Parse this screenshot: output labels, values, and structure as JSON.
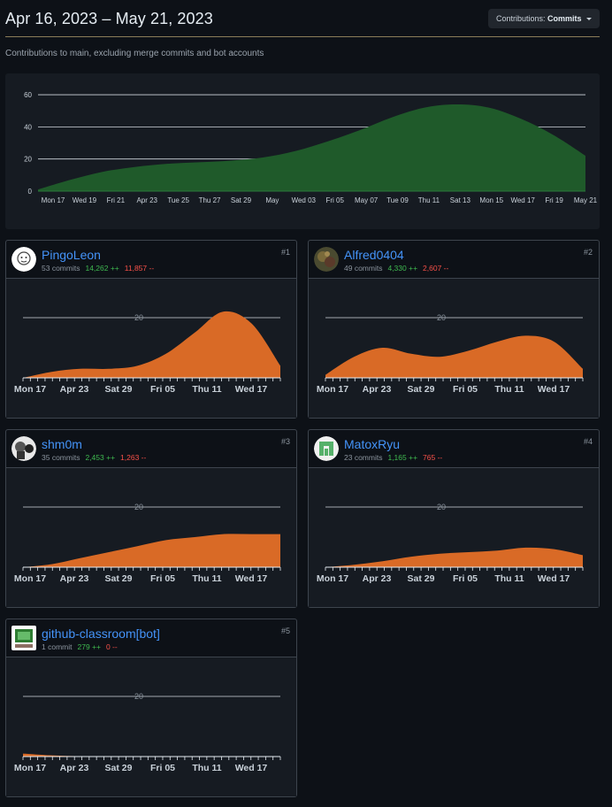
{
  "header": {
    "title": "Apr 16, 2023 – May 21, 2023",
    "dropdown_prefix": "Contributions:",
    "dropdown_value": "Commits"
  },
  "subtitle": "Contributions to main, excluding merge commits and bot accounts",
  "colors": {
    "main_fill": "#1f5a2a",
    "contributor_fill": "#d96a26",
    "link": "#4493f8",
    "additions": "#3fb950",
    "deletions": "#f85149"
  },
  "chart_data": [
    {
      "type": "area",
      "ylim": [
        0,
        65
      ],
      "yticks": [
        0,
        20,
        40,
        60
      ],
      "grid": true,
      "x_labels": [
        "Mon 17",
        "Wed 19",
        "Fri 21",
        "Apr 23",
        "Tue 25",
        "Thu 27",
        "Sat 29",
        "May",
        "Wed 03",
        "Fri 05",
        "May 07",
        "Tue 09",
        "Thu 11",
        "Sat 13",
        "Mon 15",
        "Wed 17",
        "Fri 19",
        "May 21"
      ],
      "x": [
        0,
        1,
        2,
        3,
        4,
        5,
        6,
        7,
        8,
        9,
        10,
        11,
        12,
        13,
        14,
        15,
        16,
        17
      ],
      "values": [
        1,
        7,
        12,
        15,
        17,
        18,
        19,
        21,
        25,
        31,
        38,
        46,
        52,
        54,
        52,
        45,
        35,
        22
      ]
    },
    {
      "type": "area",
      "ylim": [
        0,
        30
      ],
      "yticks": [
        20
      ],
      "grid": true,
      "x_labels": [
        "Mon 17",
        "Apr 23",
        "Sat 29",
        "Fri 05",
        "Thu 11",
        "Wed 17"
      ],
      "values": [
        0,
        2,
        3,
        3,
        4,
        8,
        15,
        22,
        18,
        4
      ]
    },
    {
      "type": "area",
      "ylim": [
        0,
        30
      ],
      "yticks": [
        20
      ],
      "grid": true,
      "x_labels": [
        "Mon 17",
        "Apr 23",
        "Sat 29",
        "Fri 05",
        "Thu 11",
        "Wed 17"
      ],
      "values": [
        1,
        7,
        10,
        8,
        7,
        9,
        12,
        14,
        12,
        3
      ]
    },
    {
      "type": "area",
      "ylim": [
        0,
        30
      ],
      "yticks": [
        20
      ],
      "grid": true,
      "x_labels": [
        "Mon 17",
        "Apr 23",
        "Sat 29",
        "Fri 05",
        "Thu 11",
        "Wed 17"
      ],
      "values": [
        0,
        1,
        3,
        5,
        7,
        9,
        10,
        11,
        11,
        11
      ]
    },
    {
      "type": "area",
      "ylim": [
        0,
        30
      ],
      "yticks": [
        20
      ],
      "grid": true,
      "x_labels": [
        "Mon 17",
        "Apr 23",
        "Sat 29",
        "Fri 05",
        "Thu 11",
        "Wed 17"
      ],
      "values": [
        0,
        0.8,
        2,
        3.5,
        4.5,
        5,
        5.5,
        6.5,
        6,
        4
      ]
    },
    {
      "type": "area",
      "ylim": [
        0,
        30
      ],
      "yticks": [
        20
      ],
      "grid": true,
      "x_labels": [
        "Mon 17",
        "Apr 23",
        "Sat 29",
        "Fri 05",
        "Thu 11",
        "Wed 17"
      ],
      "values": [
        1,
        0.4,
        0.1,
        0,
        0,
        0,
        0,
        0,
        0,
        0
      ]
    }
  ],
  "contributors": [
    {
      "name": "PingoLeon",
      "commits": "53 commits",
      "additions": "14,262 ++",
      "deletions": "11,857 --",
      "rank": "#1",
      "avatar": "avatar-white-icon"
    },
    {
      "name": "Alfred0404",
      "commits": "49 commits",
      "additions": "4,330 ++",
      "deletions": "2,607 --",
      "rank": "#2",
      "avatar": "avatar-photo-icon"
    },
    {
      "name": "shm0m",
      "commits": "35 commits",
      "additions": "2,453 ++",
      "deletions": "1,263 --",
      "rank": "#3",
      "avatar": "avatar-sketch-icon"
    },
    {
      "name": "MatoxRyu",
      "commits": "23 commits",
      "additions": "1,165 ++",
      "deletions": "765 --",
      "rank": "#4",
      "avatar": "avatar-identicon-icon"
    },
    {
      "name": "github-classroom[bot]",
      "commits": "1 commit",
      "additions": "279 ++",
      "deletions": "0 --",
      "rank": "#5",
      "avatar": "avatar-bot-icon"
    }
  ]
}
